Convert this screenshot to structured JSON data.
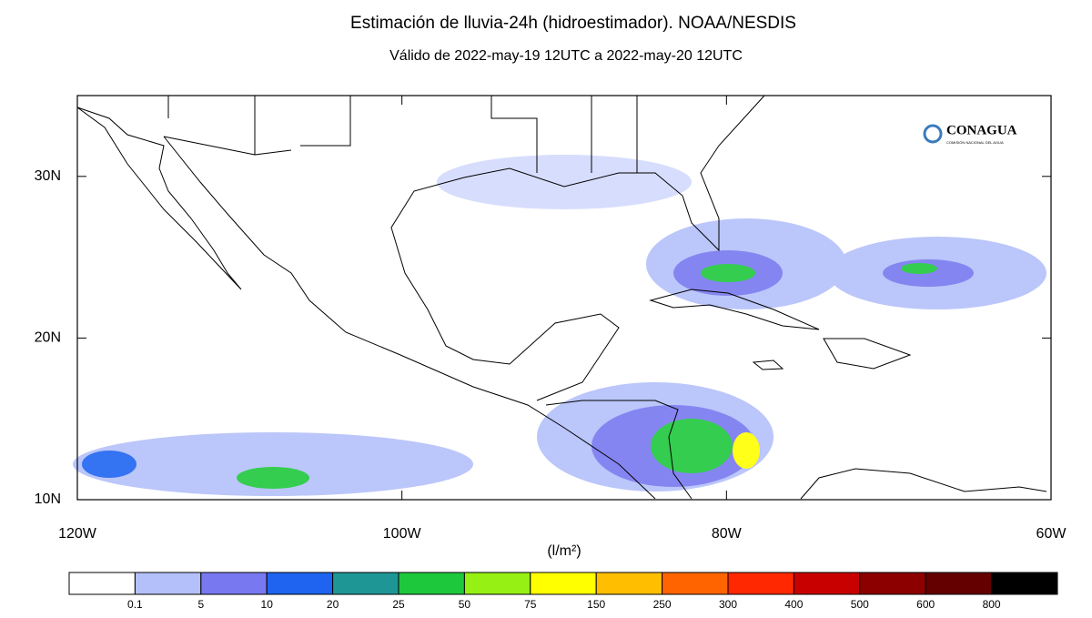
{
  "title": "Estimación de lluvia-24h (hidroestimador). NOAA/NESDIS",
  "subtitle": "Válido de 2022-may-19 12UTC a 2022-may-20 12UTC",
  "logo": {
    "name": "CONAGUA",
    "tagline": "COMISIÓN NACIONAL DEL AGUA"
  },
  "map": {
    "lon_range": [
      -120,
      -60
    ],
    "lat_range": [
      10,
      35
    ],
    "lon_ticks": [
      {
        "value": -120,
        "label": "120W"
      },
      {
        "value": -100,
        "label": "100W"
      },
      {
        "value": -80,
        "label": "80W"
      },
      {
        "value": -60,
        "label": "60W"
      }
    ],
    "lat_ticks": [
      {
        "value": 30,
        "label": "30N"
      },
      {
        "value": 20,
        "label": "20N"
      },
      {
        "value": 10,
        "label": "10N"
      }
    ],
    "unit_label": "(l/m²)"
  },
  "colorbar": {
    "colors": [
      "#ffffff",
      "#b4c0fa",
      "#7878f0",
      "#1e64f0",
      "#1e9696",
      "#1ec83c",
      "#96f014",
      "#ffff00",
      "#ffbe00",
      "#ff6400",
      "#ff2800",
      "#c80000",
      "#8c0000",
      "#640000",
      "#000000"
    ],
    "levels": [
      0.1,
      5,
      10,
      20,
      25,
      50,
      75,
      150,
      250,
      300,
      400,
      500,
      600,
      800
    ]
  }
}
